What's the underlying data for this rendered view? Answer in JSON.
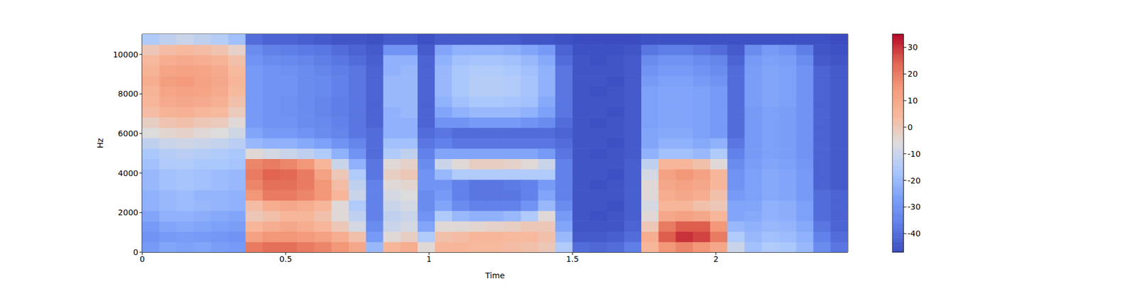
{
  "chart_data": {
    "type": "heatmap",
    "xlabel": "Time",
    "ylabel": "Hz",
    "color": "coolwarm",
    "xlim": [
      0,
      2.46
    ],
    "ylim": [
      0,
      11025
    ],
    "xticks": [
      0,
      0.5,
      1,
      1.5,
      2
    ],
    "yticks": [
      0,
      2000,
      4000,
      6000,
      8000,
      10000
    ],
    "x_bins": [
      0,
      0.06,
      0.12,
      0.18,
      0.24,
      0.3,
      0.36,
      0.42,
      0.48,
      0.54,
      0.6,
      0.66,
      0.72,
      0.78,
      0.84,
      0.9,
      0.96,
      1.02,
      1.08,
      1.14,
      1.2,
      1.26,
      1.32,
      1.38,
      1.44,
      1.5,
      1.56,
      1.62,
      1.68,
      1.74,
      1.8,
      1.86,
      1.92,
      1.98,
      2.04,
      2.1,
      2.16,
      2.22,
      2.28,
      2.34,
      2.4,
      2.46
    ],
    "y_bins": [
      0,
      525,
      1050,
      1575,
      2100,
      2625,
      3150,
      3675,
      4200,
      4725,
      5250,
      5775,
      6300,
      6825,
      7350,
      7875,
      8400,
      8925,
      9450,
      9975,
      10500,
      11025
    ],
    "values": [
      [
        -28,
        -30,
        -28,
        -25,
        -22,
        -22,
        -20,
        -20,
        -18,
        -16,
        -12,
        -6,
        -2,
        3,
        5,
        6,
        8,
        6,
        4,
        0,
        -15
      ],
      [
        -25,
        -28,
        -25,
        -22,
        -20,
        -20,
        -18,
        -18,
        -15,
        -14,
        -10,
        -4,
        1,
        6,
        9,
        11,
        13,
        11,
        8,
        3,
        -12
      ],
      [
        -26,
        -27,
        -24,
        -22,
        -19,
        -19,
        -17,
        -17,
        -15,
        -13,
        -9,
        -3,
        2,
        7,
        10,
        12,
        14,
        12,
        9,
        4,
        -10
      ],
      [
        -25,
        -28,
        -25,
        -23,
        -20,
        -21,
        -18,
        -18,
        -16,
        -14,
        -10,
        -5,
        0,
        5,
        9,
        11,
        12,
        11,
        8,
        3,
        -12
      ],
      [
        -27,
        -29,
        -26,
        -24,
        -21,
        -21,
        -19,
        -19,
        -16,
        -15,
        -11,
        -6,
        -1,
        4,
        7,
        9,
        10,
        9,
        6,
        1,
        -14
      ],
      [
        -28,
        -30,
        -27,
        -25,
        -22,
        -22,
        -20,
        -20,
        -17,
        -16,
        -13,
        -9,
        -5,
        -1,
        2,
        4,
        5,
        4,
        2,
        -3,
        -18
      ],
      [
        20,
        12,
        5,
        0,
        3,
        15,
        18,
        20,
        18,
        -5,
        -20,
        -25,
        -28,
        -28,
        -28,
        -28,
        -28,
        -28,
        -30,
        -32,
        -40
      ],
      [
        22,
        15,
        8,
        2,
        8,
        20,
        22,
        24,
        20,
        -8,
        -22,
        -28,
        -30,
        -30,
        -30,
        -30,
        -30,
        -30,
        -32,
        -35,
        -42
      ],
      [
        22,
        15,
        10,
        5,
        10,
        20,
        22,
        23,
        18,
        -10,
        -22,
        -28,
        -30,
        -31,
        -31,
        -30,
        -30,
        -31,
        -33,
        -36,
        -42
      ],
      [
        20,
        14,
        8,
        5,
        8,
        18,
        20,
        20,
        15,
        -12,
        -24,
        -30,
        -32,
        -32,
        -32,
        -32,
        -32,
        -32,
        -34,
        -37,
        -43
      ],
      [
        18,
        12,
        5,
        2,
        5,
        15,
        15,
        12,
        5,
        -15,
        -26,
        -32,
        -33,
        -34,
        -34,
        -33,
        -33,
        -34,
        -36,
        -38,
        -44
      ],
      [
        15,
        8,
        0,
        -5,
        -5,
        5,
        3,
        0,
        -10,
        -22,
        -30,
        -34,
        -35,
        -36,
        -36,
        -35,
        -35,
        -36,
        -38,
        -40,
        -45
      ],
      [
        10,
        2,
        -8,
        -12,
        -15,
        -10,
        -12,
        -15,
        -22,
        -30,
        -34,
        -38,
        -38,
        -38,
        -38,
        -38,
        -38,
        -38,
        -40,
        -42,
        -45
      ],
      [
        -20,
        -28,
        -32,
        -35,
        -35,
        -35,
        -35,
        -38,
        -38,
        -40,
        -40,
        -40,
        -42,
        -42,
        -42,
        -42,
        -42,
        -42,
        -43,
        -44,
        -46
      ],
      [
        5,
        -5,
        -10,
        -12,
        -10,
        -8,
        -5,
        -2,
        -5,
        -15,
        -18,
        -22,
        -22,
        -22,
        -20,
        -20,
        -20,
        -22,
        -22,
        -30,
        -44
      ],
      [
        8,
        -2,
        -8,
        -10,
        -8,
        -6,
        -4,
        0,
        -3,
        -12,
        -18,
        -22,
        -22,
        -20,
        -20,
        -20,
        -20,
        -20,
        -22,
        -30,
        -44
      ],
      [
        -5,
        -15,
        -25,
        -30,
        -32,
        -32,
        -30,
        -30,
        -32,
        -35,
        -38,
        -40,
        -42,
        -42,
        -42,
        -42,
        -42,
        -42,
        -42,
        -44,
        -46
      ],
      [
        5,
        2,
        -5,
        -15,
        -25,
        -28,
        -30,
        -20,
        -10,
        -25,
        -35,
        -38,
        -30,
        -25,
        -22,
        -20,
        -20,
        -20,
        -22,
        -25,
        -44
      ],
      [
        5,
        3,
        -5,
        -20,
        -32,
        -35,
        -35,
        -15,
        -5,
        -25,
        -38,
        -40,
        -30,
        -22,
        -18,
        -16,
        -16,
        -16,
        -18,
        -22,
        -44
      ],
      [
        4,
        5,
        -4,
        -22,
        -35,
        -38,
        -38,
        -15,
        -2,
        -25,
        -38,
        -40,
        -28,
        -20,
        -16,
        -14,
        -14,
        -15,
        -17,
        -22,
        -44
      ],
      [
        4,
        5,
        -3,
        -22,
        -35,
        -38,
        -38,
        -15,
        -2,
        -25,
        -38,
        -40,
        -28,
        -20,
        -16,
        -14,
        -14,
        -15,
        -17,
        -22,
        -44
      ],
      [
        3,
        4,
        -2,
        -20,
        -35,
        -38,
        -37,
        -15,
        -3,
        -25,
        -38,
        -40,
        -28,
        -20,
        -17,
        -15,
        -15,
        -16,
        -18,
        -23,
        -44
      ],
      [
        2,
        4,
        0,
        -15,
        -30,
        -35,
        -35,
        -15,
        -5,
        -25,
        -38,
        -40,
        -30,
        -22,
        -18,
        -17,
        -17,
        -18,
        -20,
        -25,
        -45
      ],
      [
        0,
        2,
        0,
        -5,
        -20,
        -25,
        -28,
        -15,
        -10,
        -28,
        -38,
        -40,
        -32,
        -26,
        -24,
        -22,
        -22,
        -22,
        -24,
        -28,
        -45
      ],
      [
        -15,
        -20,
        -25,
        -28,
        -32,
        -35,
        -35,
        -35,
        -35,
        -38,
        -40,
        -42,
        -40,
        -38,
        -38,
        -38,
        -38,
        -38,
        -40,
        -42,
        -46
      ],
      [
        -40,
        -44,
        -45,
        -45,
        -45,
        -45,
        -45,
        -45,
        -45,
        -45,
        -45,
        -45,
        -45,
        -45,
        -45,
        -45,
        -45,
        -45,
        -45,
        -46,
        -47
      ],
      [
        -41,
        -44,
        -45,
        -46,
        -45,
        -45,
        -46,
        -45,
        -45,
        -46,
        -45,
        -45,
        -46,
        -45,
        -45,
        -46,
        -45,
        -45,
        -46,
        -46,
        -47
      ],
      [
        -40,
        -43,
        -45,
        -45,
        -46,
        -45,
        -45,
        -46,
        -45,
        -45,
        -46,
        -45,
        -45,
        -46,
        -45,
        -45,
        -46,
        -45,
        -45,
        -46,
        -47
      ],
      [
        -36,
        -40,
        -42,
        -43,
        -43,
        -43,
        -43,
        -43,
        -43,
        -44,
        -44,
        -44,
        -44,
        -44,
        -44,
        -44,
        -44,
        -44,
        -44,
        -45,
        -47
      ],
      [
        5,
        8,
        0,
        -5,
        -8,
        -5,
        -5,
        -8,
        -12,
        -22,
        -25,
        -25,
        -26,
        -26,
        -26,
        -26,
        -28,
        -30,
        -32,
        -38,
        -46
      ],
      [
        15,
        25,
        20,
        10,
        5,
        8,
        10,
        12,
        5,
        -18,
        -22,
        -24,
        -25,
        -25,
        -25,
        -25,
        -26,
        -28,
        -30,
        -36,
        -46
      ],
      [
        18,
        30,
        25,
        12,
        5,
        10,
        12,
        15,
        5,
        -18,
        -22,
        -24,
        -25,
        -25,
        -25,
        -25,
        -26,
        -28,
        -30,
        -36,
        -46
      ],
      [
        15,
        28,
        25,
        10,
        2,
        8,
        10,
        12,
        2,
        -20,
        -24,
        -26,
        -26,
        -26,
        -26,
        -26,
        -28,
        -30,
        -32,
        -38,
        -46
      ],
      [
        10,
        20,
        15,
        5,
        0,
        2,
        5,
        5,
        -5,
        -15,
        -22,
        -28,
        -28,
        -28,
        -28,
        -28,
        -30,
        -32,
        -34,
        -40,
        -46
      ],
      [
        -10,
        -15,
        -20,
        -25,
        -25,
        -28,
        -30,
        -30,
        -32,
        -35,
        -38,
        -40,
        -40,
        -40,
        -40,
        -40,
        -40,
        -40,
        -42,
        -44,
        -46
      ],
      [
        -18,
        -20,
        -22,
        -24,
        -25,
        -26,
        -26,
        -26,
        -27,
        -28,
        -28,
        -28,
        -28,
        -28,
        -27,
        -27,
        -27,
        -27,
        -28,
        -32,
        -46
      ],
      [
        -15,
        -18,
        -20,
        -22,
        -22,
        -24,
        -24,
        -24,
        -25,
        -26,
        -26,
        -26,
        -26,
        -26,
        -25,
        -25,
        -25,
        -25,
        -26,
        -28,
        -46
      ],
      [
        -16,
        -19,
        -21,
        -23,
        -23,
        -25,
        -25,
        -25,
        -26,
        -27,
        -27,
        -27,
        -27,
        -27,
        -26,
        -26,
        -26,
        -26,
        -27,
        -30,
        -46
      ],
      [
        -20,
        -22,
        -24,
        -26,
        -26,
        -28,
        -28,
        -28,
        -29,
        -30,
        -30,
        -30,
        -30,
        -30,
        -30,
        -30,
        -30,
        -30,
        -32,
        -36,
        -46
      ],
      [
        -32,
        -35,
        -38,
        -40,
        -40,
        -40,
        -42,
        -42,
        -42,
        -42,
        -42,
        -42,
        -42,
        -42,
        -42,
        -42,
        -42,
        -42,
        -44,
        -45,
        -46
      ],
      [
        -38,
        -40,
        -42,
        -42,
        -42,
        -42,
        -44,
        -44,
        -44,
        -44,
        -44,
        -44,
        -44,
        -44,
        -44,
        -44,
        -44,
        -44,
        -45,
        -46,
        -47
      ]
    ],
    "colorbar_range": [
      -47,
      35
    ],
    "colorbar_ticks": [
      -40,
      -30,
      -20,
      -10,
      0,
      10,
      20,
      30
    ]
  }
}
